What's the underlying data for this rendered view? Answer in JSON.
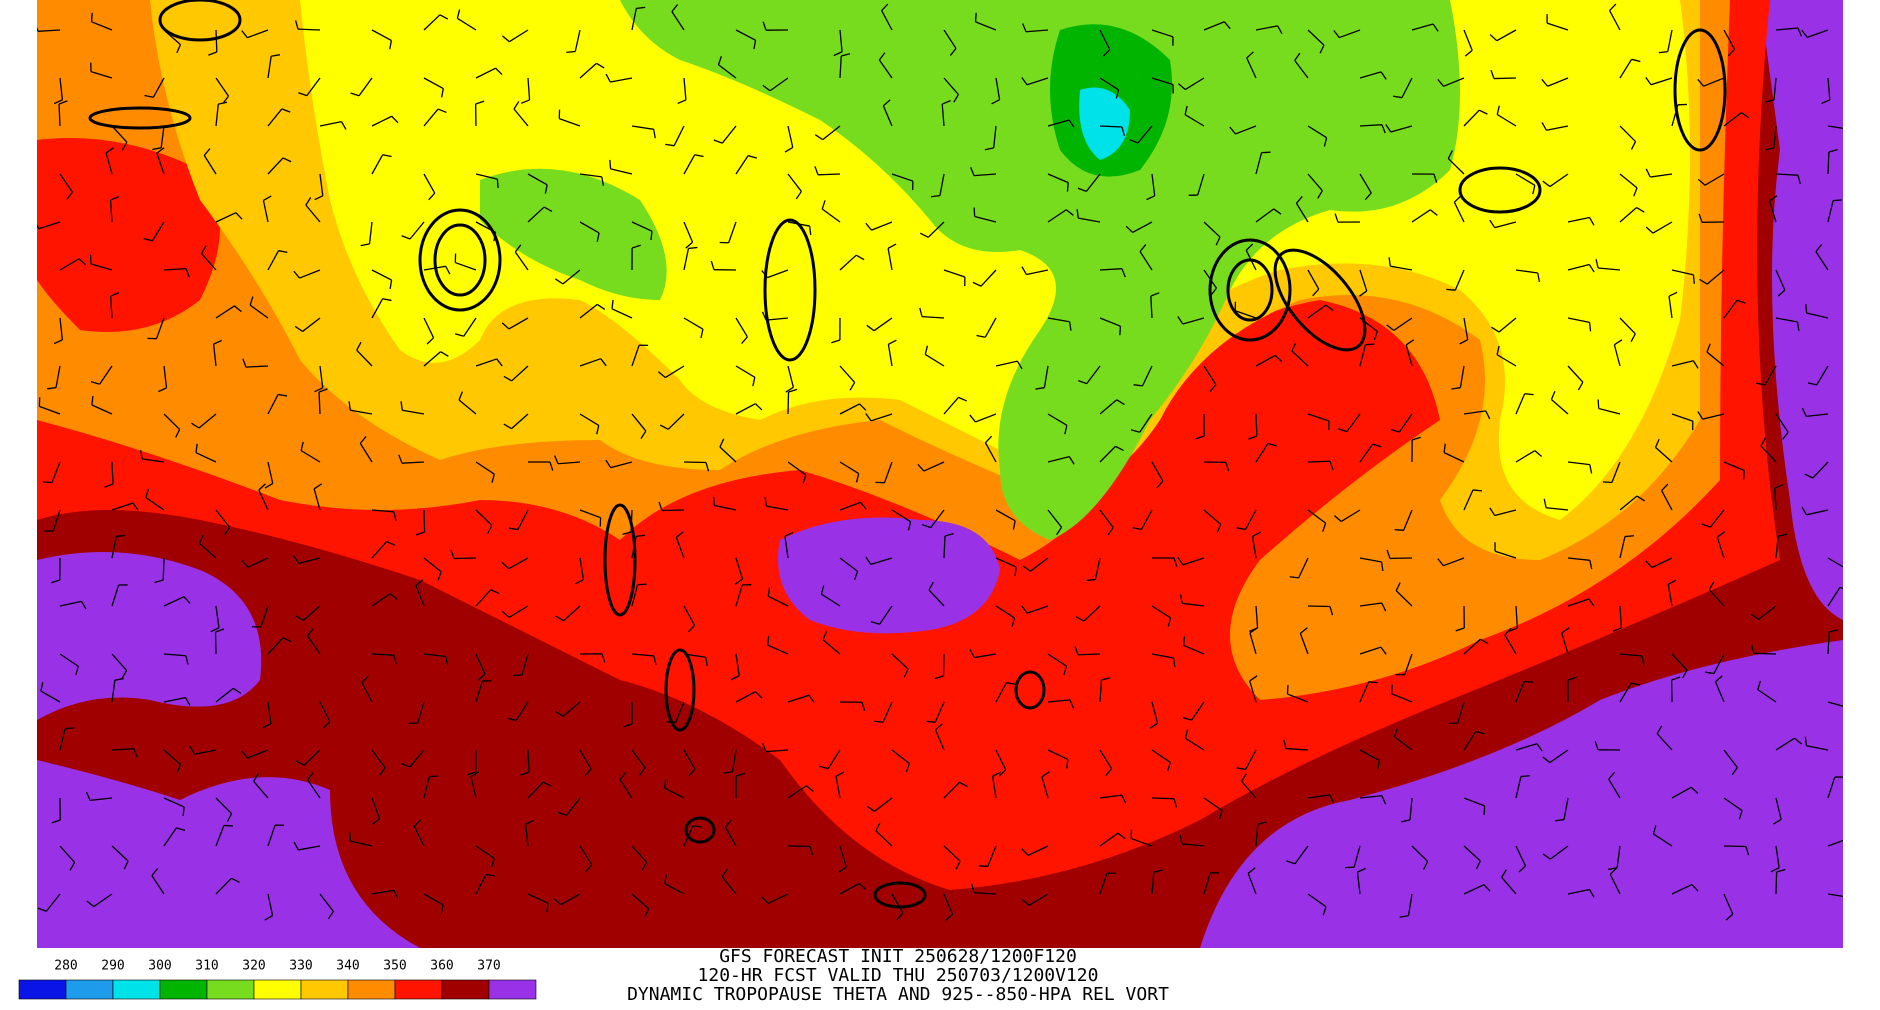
{
  "legend": {
    "labels": [
      280,
      290,
      300,
      310,
      320,
      330,
      340,
      350,
      360,
      370
    ],
    "colors": [
      "#0a14e6",
      "#1e9bea",
      "#00e2ea",
      "#00b400",
      "#78dc1e",
      "#ffff00",
      "#ffc800",
      "#ff8c00",
      "#ff1400",
      "#a00000",
      "#9932e6"
    ]
  },
  "title": {
    "lines": [
      "GFS FORECAST INIT 250628/1200F120",
      "120-HR FCST VALID THU 250703/1200V120",
      "DYNAMIC TROPOPAUSE THETA AND 925--850-HPA REL VORT"
    ]
  }
}
